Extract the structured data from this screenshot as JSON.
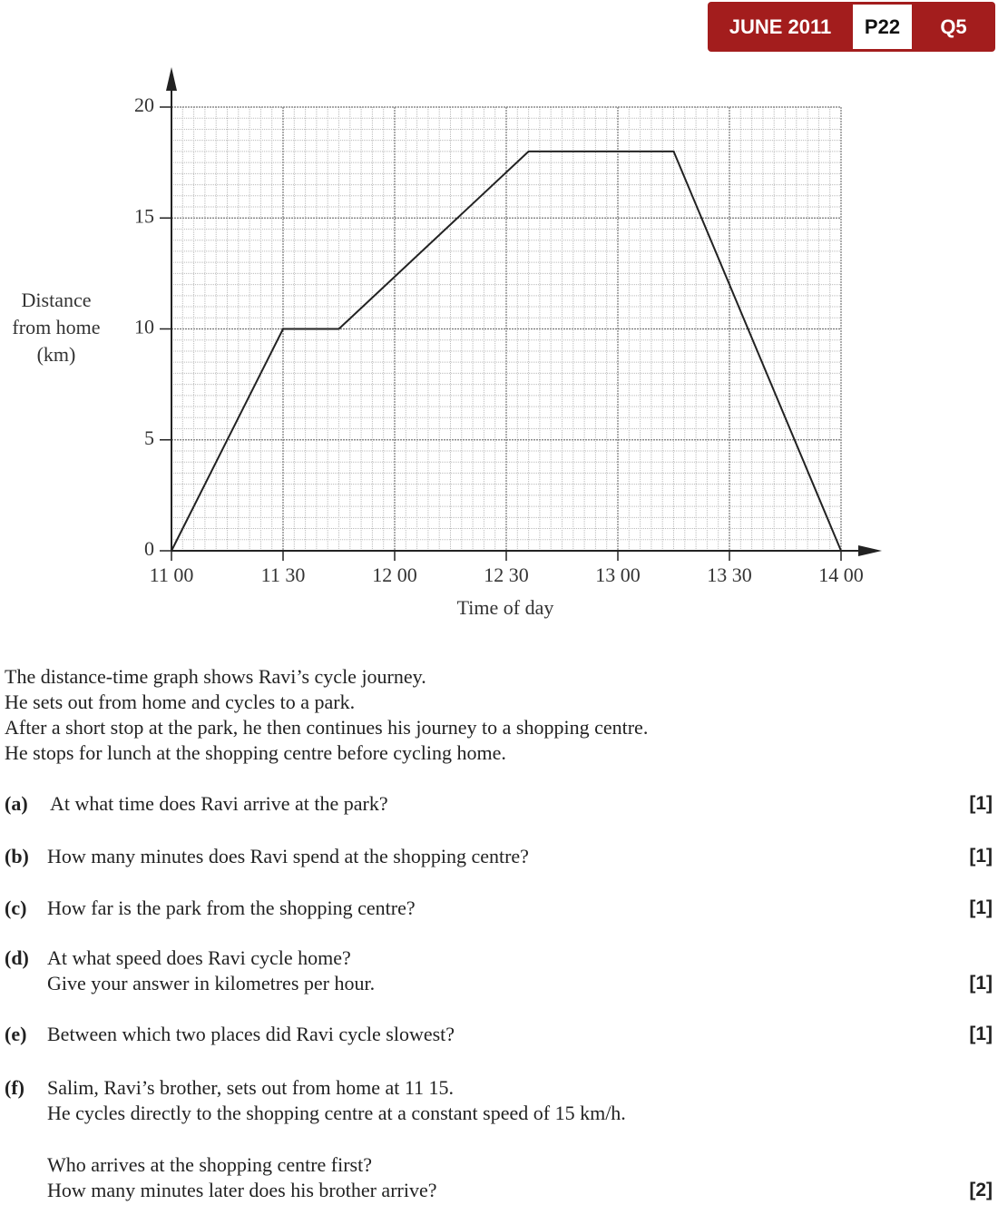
{
  "header": {
    "session": "JUNE 2011",
    "paper": "P22",
    "question": "Q5"
  },
  "chart_data": {
    "type": "line",
    "xlabel": "Time of day",
    "ylabel": [
      "Distance",
      "from home",
      "(km)"
    ],
    "x": [
      11,
      11.5,
      11.75,
      12.6,
      13.25,
      14
    ],
    "values": [
      0,
      10,
      10,
      18,
      18,
      0
    ],
    "color": "#222222",
    "xlim": [
      11,
      14
    ],
    "xticks": [
      {
        "value": 11,
        "label": "11 00"
      },
      {
        "value": 11.5,
        "label": "11 30"
      },
      {
        "value": 12,
        "label": "12 00"
      },
      {
        "value": 12.5,
        "label": "12 30"
      },
      {
        "value": 13,
        "label": "13 00"
      },
      {
        "value": 13.5,
        "label": "13 30"
      },
      {
        "value": 14,
        "label": "14 00"
      }
    ],
    "ylim": [
      0,
      20
    ],
    "yticks": [
      0,
      5,
      10,
      15,
      20
    ],
    "grid": true
  },
  "intro": [
    "The distance-time graph shows Ravi’s cycle journey.",
    "He sets out from home and cycles to a park.",
    "After a short stop at the park, he then continues his journey to a shopping centre.",
    "He stops for lunch at the shopping centre before cycling home."
  ],
  "questions": [
    {
      "label": "(a)",
      "lines": [
        "At what time does Ravi arrive at the park?"
      ],
      "marks": "[1]"
    },
    {
      "label": "(b)",
      "lines": [
        "How many minutes does Ravi spend at the shopping centre?"
      ],
      "marks": "[1]"
    },
    {
      "label": "(c)",
      "lines": [
        "How far is the park from the shopping centre?"
      ],
      "marks": "[1]"
    },
    {
      "label": "(d)",
      "lines": [
        "At what speed does Ravi cycle home?",
        "Give your answer in kilometres per hour."
      ],
      "marks": "[1]"
    },
    {
      "label": "(e)",
      "lines": [
        "Between which two places did Ravi cycle slowest?"
      ],
      "marks": "[1]"
    },
    {
      "label": "(f)",
      "lines": [
        "Salim, Ravi’s brother, sets out from home at 11 15.",
        "He cycles directly to the shopping centre at a constant speed of 15 km/h.",
        "Who arrives at the shopping centre first?",
        "How many minutes later does his brother arrive?"
      ],
      "marks": "[2]"
    }
  ]
}
